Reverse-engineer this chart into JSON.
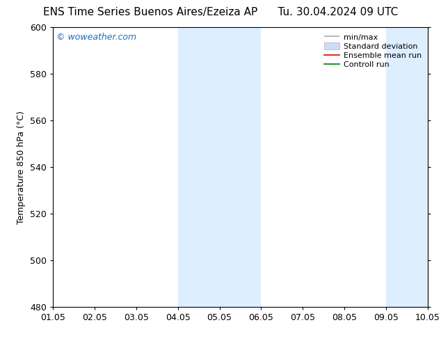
{
  "title": "ENS Time Series Buenos Aires/Ezeiza AP      Tu. 30.04.2024 09 UTC",
  "ylabel": "Temperature 850 hPa (°C)",
  "xlabel_ticks": [
    "01.05",
    "02.05",
    "03.05",
    "04.05",
    "05.05",
    "06.05",
    "07.05",
    "08.05",
    "09.05",
    "10.05"
  ],
  "xlim": [
    0,
    9
  ],
  "ylim": [
    480,
    600
  ],
  "yticks": [
    480,
    500,
    520,
    540,
    560,
    580,
    600
  ],
  "watermark": "© woweather.com",
  "watermark_color": "#1a6fc4",
  "bg_color": "#ffffff",
  "plot_bg_color": "#ffffff",
  "shaded_bands": [
    {
      "x_start": 3.0,
      "x_end": 5.0,
      "color": "#ddeeff"
    },
    {
      "x_start": 8.0,
      "x_end": 9.0,
      "color": "#ddeeff"
    }
  ],
  "legend_entries": [
    {
      "label": "min/max",
      "color": "#aaaaaa",
      "linewidth": 1.2
    },
    {
      "label": "Standard deviation",
      "color": "#ccddf0",
      "patch": true
    },
    {
      "label": "Ensemble mean run",
      "color": "#dd0000",
      "linewidth": 1.2
    },
    {
      "label": "Controll run",
      "color": "#007700",
      "linewidth": 1.2
    }
  ],
  "title_fontsize": 11,
  "tick_label_fontsize": 9,
  "ylabel_fontsize": 9,
  "legend_fontsize": 8
}
